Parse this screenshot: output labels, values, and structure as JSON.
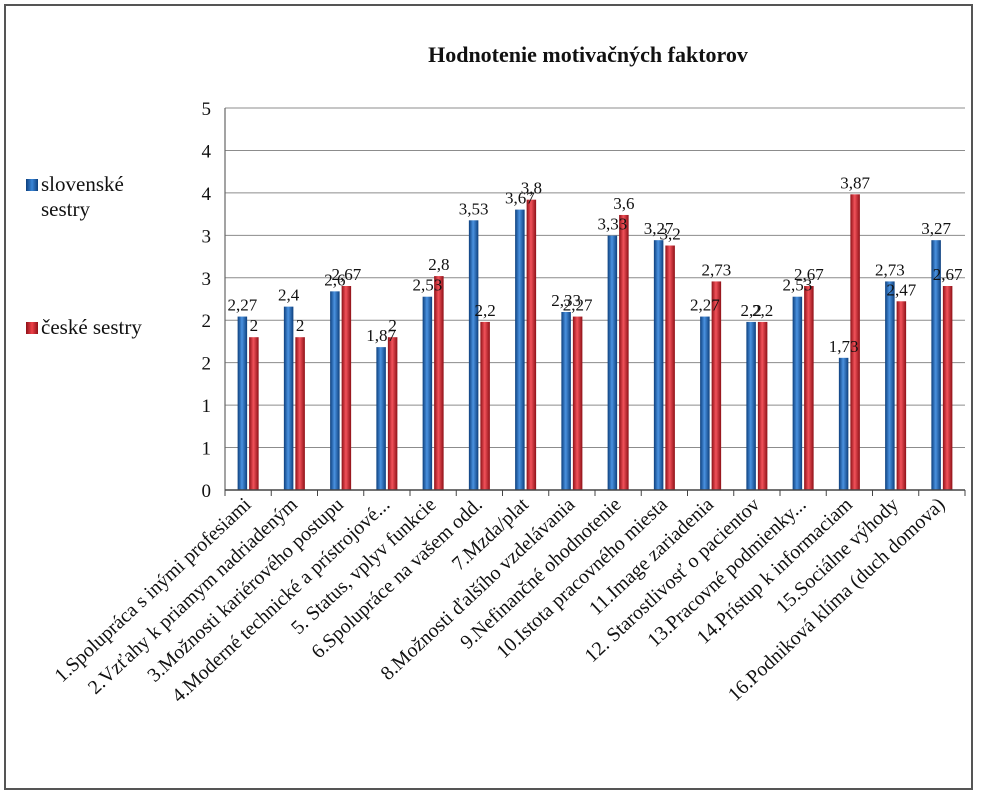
{
  "chart_data": {
    "type": "bar",
    "title": "Hodnotenie motivačných faktorov",
    "xlabel": "",
    "ylabel": "",
    "ylim": [
      0,
      5
    ],
    "yticks": [
      "0",
      "1",
      "1",
      "2",
      "2",
      "3",
      "3",
      "4",
      "4",
      "5"
    ],
    "grid": true,
    "legend_position": "left",
    "categories": [
      "1.Spolupráca s inými profesiami",
      "2.Vzťahy k priamym nadriadeným",
      "3.Možnosti kariérového postupu",
      "4.Moderné technické a prístrojové...",
      "5. Status, vplyv funkcie",
      "6.Spolupráce na  vašem odd.",
      "7.Mzda/plat",
      "8.Možnosti ďalšího vzdelávania",
      "9.Nefinančné ohodnotenie",
      "10.Istota pracovného miesta",
      "11.Image zariadenia",
      "12. Starostlivosť o pacientov",
      "13.Pracovné podmienky...",
      "14.Prístup k informaciam",
      "15.Sociálne výhody",
      "16.Podniková klíma (duch domova)"
    ],
    "series": [
      {
        "name": "slovenské sestry",
        "color": "#1f5fae",
        "values": [
          2.27,
          2.4,
          2.6,
          1.87,
          2.53,
          3.53,
          3.67,
          2.33,
          3.33,
          3.27,
          2.27,
          2.2,
          2.53,
          1.73,
          2.73,
          3.27
        ],
        "labels": [
          "2,27",
          "2,4",
          "2,6",
          "1,87",
          "2,53",
          "3,53",
          "3,67",
          "2,33",
          "3,33",
          "3,27",
          "2,27",
          "2,2",
          "2,53",
          "1,73",
          "2,73",
          "3,27"
        ]
      },
      {
        "name": "české sestry",
        "color": "#c8202a",
        "values": [
          2,
          2,
          2.67,
          2,
          2.8,
          2.2,
          3.8,
          2.27,
          3.6,
          3.2,
          2.73,
          2.2,
          2.67,
          3.87,
          2.47,
          2.67
        ],
        "labels": [
          "2",
          "2",
          "2,67",
          "2",
          "2,8",
          "2,2",
          "3,8",
          "2,27",
          "3,6",
          "3,2",
          "2,73",
          "2,2",
          "2,67",
          "3,87",
          "2,47",
          "2,67"
        ]
      }
    ]
  }
}
